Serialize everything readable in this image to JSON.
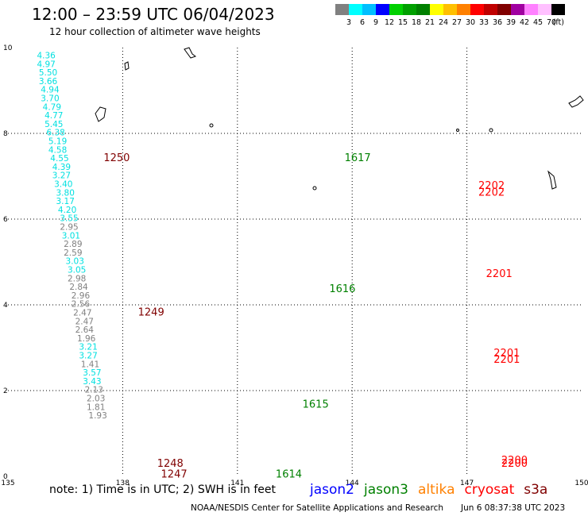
{
  "header": {
    "title": "12:00 – 23:59 UTC 06/04/2023",
    "subtitle": "12 hour collection of altimeter wave heights"
  },
  "colorbar": {
    "unit": "(ft)",
    "ticks": [
      "3",
      "6",
      "9",
      "12",
      "15",
      "18",
      "21",
      "24",
      "27",
      "30",
      "33",
      "36",
      "39",
      "42",
      "45",
      "70"
    ],
    "colors": [
      "#808080",
      "#00ffff",
      "#00bfff",
      "#0000ff",
      "#00d000",
      "#00a000",
      "#008000",
      "#ffff00",
      "#ffc000",
      "#ff8000",
      "#ff0000",
      "#c00000",
      "#800000",
      "#a000a0",
      "#ff80ff",
      "#ffc0ff",
      "#000000"
    ]
  },
  "footer": {
    "note": "note: 1) Time is in UTC; 2) SWH is in feet",
    "satellites": [
      {
        "name": "jason2",
        "color": "#0000ff"
      },
      {
        "name": "jason3",
        "color": "#008000"
      },
      {
        "name": "altika",
        "color": "#ff8000"
      },
      {
        "name": "cryosat",
        "color": "#ff0000"
      },
      {
        "name": "s3a",
        "color": "#800000"
      }
    ],
    "credit": "NOAA/NESDIS Center for Satellite Applications and Research",
    "timestamp": "Jun  6 08:37:38 UTC 2023"
  },
  "chart_data": {
    "type": "scatter",
    "title": "12:00 – 23:59 UTC 06/04/2023",
    "subtitle": "12 hour collection of altimeter wave heights",
    "xlim": [
      135,
      150
    ],
    "ylim": [
      0,
      10
    ],
    "xticks": [
      135,
      138,
      141,
      144,
      147,
      150
    ],
    "yticks": [
      0,
      2,
      4,
      6,
      8,
      10
    ],
    "grid": true,
    "legend_position": "bottom",
    "colors": {
      "gray": "#808080",
      "cyan": "#00e0e0",
      "darkgreen": "#008000",
      "red": "#ff0000",
      "maroon": "#800000"
    },
    "pass_labels": [
      {
        "label": "1250",
        "x": 137.5,
        "y": 7.35,
        "color": "#800000"
      },
      {
        "label": "1249",
        "x": 138.4,
        "y": 3.75,
        "color": "#800000"
      },
      {
        "label": "1248",
        "x": 138.9,
        "y": 0.22,
        "color": "#800000"
      },
      {
        "label": "1247",
        "x": 139.0,
        "y": -0.03,
        "color": "#800000"
      },
      {
        "label": "1617",
        "x": 143.8,
        "y": 7.35,
        "color": "#008000"
      },
      {
        "label": "1616",
        "x": 143.4,
        "y": 4.3,
        "color": "#008000"
      },
      {
        "label": "1615",
        "x": 142.7,
        "y": 1.6,
        "color": "#008000"
      },
      {
        "label": "1614",
        "x": 142.0,
        "y": -0.03,
        "color": "#008000"
      },
      {
        "label": "2202",
        "x": 147.3,
        "y": 6.7,
        "color": "#ff0000"
      },
      {
        "label": "2202",
        "x": 147.3,
        "y": 6.55,
        "color": "#ff0000"
      },
      {
        "label": "2201",
        "x": 147.5,
        "y": 4.65,
        "color": "#ff0000"
      },
      {
        "label": "2201",
        "x": 147.7,
        "y": 2.8,
        "color": "#ff0000"
      },
      {
        "label": "2201",
        "x": 147.7,
        "y": 2.65,
        "color": "#ff0000"
      },
      {
        "label": "2200",
        "x": 147.9,
        "y": 0.3,
        "color": "#ff0000"
      },
      {
        "label": "2200",
        "x": 147.9,
        "y": 0.22,
        "color": "#ff0000"
      }
    ],
    "points": [
      {
        "x": 136.0,
        "y": 9.75,
        "v": "4.36",
        "c": "cyan"
      },
      {
        "x": 136.0,
        "y": 9.55,
        "v": "4.97",
        "c": "cyan"
      },
      {
        "x": 136.05,
        "y": 9.35,
        "v": "5.50",
        "c": "cyan"
      },
      {
        "x": 136.05,
        "y": 9.15,
        "v": "3.66",
        "c": "cyan"
      },
      {
        "x": 136.1,
        "y": 8.95,
        "v": "4.94",
        "c": "cyan"
      },
      {
        "x": 136.1,
        "y": 8.75,
        "v": "3.70",
        "c": "cyan"
      },
      {
        "x": 136.15,
        "y": 8.55,
        "v": "4.79",
        "c": "cyan"
      },
      {
        "x": 136.2,
        "y": 8.35,
        "v": "4.77",
        "c": "cyan"
      },
      {
        "x": 136.2,
        "y": 8.15,
        "v": "5.45",
        "c": "cyan"
      },
      {
        "x": 136.25,
        "y": 7.95,
        "v": "6.38",
        "c": "cyan"
      },
      {
        "x": 136.3,
        "y": 7.75,
        "v": "5.19",
        "c": "cyan"
      },
      {
        "x": 136.3,
        "y": 7.55,
        "v": "4.58",
        "c": "cyan"
      },
      {
        "x": 136.35,
        "y": 7.35,
        "v": "4.55",
        "c": "cyan"
      },
      {
        "x": 136.4,
        "y": 7.15,
        "v": "4.39",
        "c": "cyan"
      },
      {
        "x": 136.4,
        "y": 6.95,
        "v": "3.27",
        "c": "cyan"
      },
      {
        "x": 136.45,
        "y": 6.75,
        "v": "3.40",
        "c": "cyan"
      },
      {
        "x": 136.5,
        "y": 6.55,
        "v": "3.80",
        "c": "cyan"
      },
      {
        "x": 136.5,
        "y": 6.35,
        "v": "3.17",
        "c": "cyan"
      },
      {
        "x": 136.55,
        "y": 6.15,
        "v": "4.20",
        "c": "cyan"
      },
      {
        "x": 136.6,
        "y": 5.95,
        "v": "3.55",
        "c": "cyan"
      },
      {
        "x": 136.6,
        "y": 5.75,
        "v": "2.95",
        "c": "gray"
      },
      {
        "x": 136.65,
        "y": 5.55,
        "v": "3.01",
        "c": "cyan"
      },
      {
        "x": 136.7,
        "y": 5.35,
        "v": "2.89",
        "c": "gray"
      },
      {
        "x": 136.7,
        "y": 5.15,
        "v": "2.59",
        "c": "gray"
      },
      {
        "x": 136.75,
        "y": 4.95,
        "v": "3.03",
        "c": "cyan"
      },
      {
        "x": 136.8,
        "y": 4.75,
        "v": "3.05",
        "c": "cyan"
      },
      {
        "x": 136.8,
        "y": 4.55,
        "v": "2.98",
        "c": "gray"
      },
      {
        "x": 136.85,
        "y": 4.35,
        "v": "2.84",
        "c": "gray"
      },
      {
        "x": 136.9,
        "y": 4.15,
        "v": "2.96",
        "c": "gray"
      },
      {
        "x": 136.9,
        "y": 3.95,
        "v": "2.56",
        "c": "gray"
      },
      {
        "x": 136.95,
        "y": 3.75,
        "v": "2.47",
        "c": "gray"
      },
      {
        "x": 137.0,
        "y": 3.55,
        "v": "2.47",
        "c": "gray"
      },
      {
        "x": 137.0,
        "y": 3.35,
        "v": "2.64",
        "c": "gray"
      },
      {
        "x": 137.05,
        "y": 3.15,
        "v": "1.96",
        "c": "gray"
      },
      {
        "x": 137.1,
        "y": 2.95,
        "v": "3.21",
        "c": "cyan"
      },
      {
        "x": 137.1,
        "y": 2.75,
        "v": "3.27",
        "c": "cyan"
      },
      {
        "x": 137.15,
        "y": 2.55,
        "v": "1.41",
        "c": "gray"
      },
      {
        "x": 137.2,
        "y": 2.35,
        "v": "3.57",
        "c": "cyan"
      },
      {
        "x": 137.2,
        "y": 2.15,
        "v": "3.43",
        "c": "cyan"
      },
      {
        "x": 137.25,
        "y": 1.95,
        "v": "2.13",
        "c": "gray"
      },
      {
        "x": 137.3,
        "y": 1.75,
        "v": "2.03",
        "c": "gray"
      },
      {
        "x": 137.3,
        "y": 1.55,
        "v": "1.81",
        "c": "gray"
      },
      {
        "x": 137.35,
        "y": 1.35,
        "v": "1.93",
        "c": "gray"
      }
    ]
  }
}
